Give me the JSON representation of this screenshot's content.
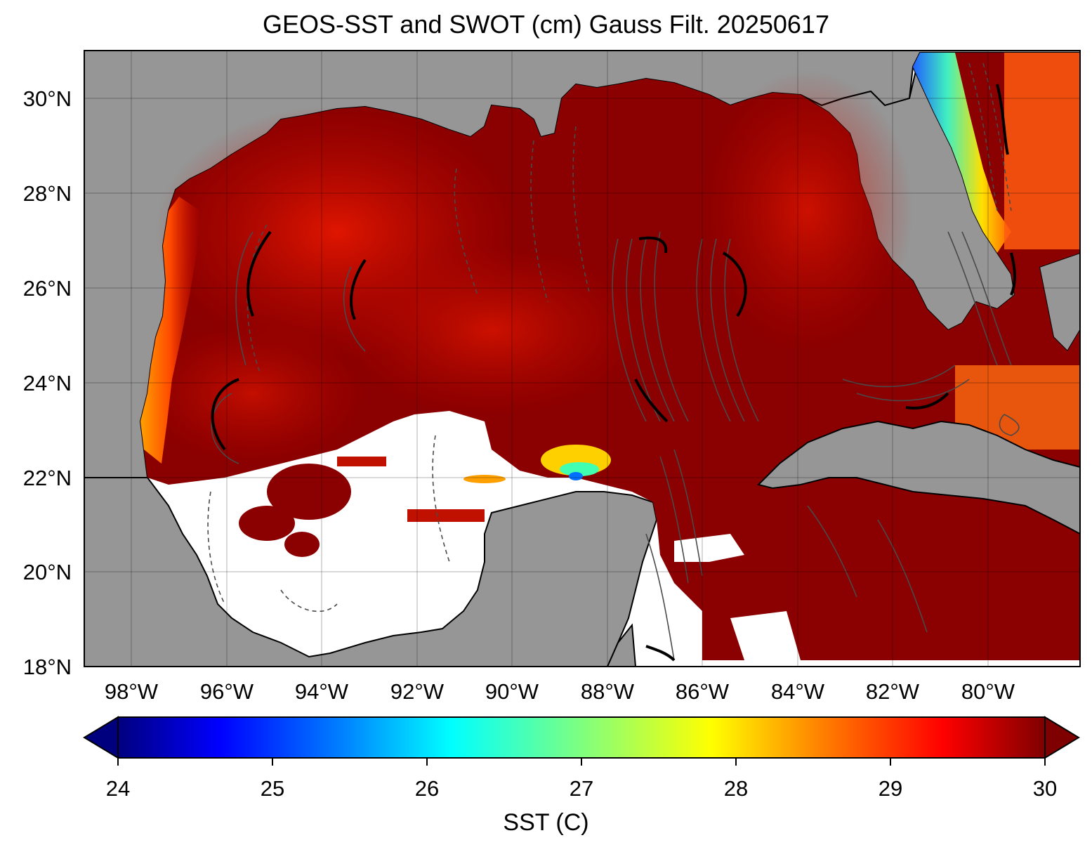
{
  "title": "GEOS-SST  and SWOT (cm) Gauss Filt. 20250617",
  "map": {
    "lat_ticks": [
      "30°N",
      "28°N",
      "26°N",
      "24°N",
      "22°N",
      "20°N",
      "18°N"
    ],
    "lon_ticks": [
      "98°W",
      "96°W",
      "94°W",
      "92°W",
      "90°W",
      "88°W",
      "86°W",
      "84°W",
      "82°W",
      "80°W"
    ],
    "extent": {
      "lon_min": -99.0,
      "lon_max": -78.1,
      "lat_min": 18.0,
      "lat_max": 31.0
    },
    "grid_lines": true,
    "land_color": "#969696",
    "sst_max_color": "#800000",
    "contour_color": "#4a4a4a",
    "missing_data_color": "#ffffff"
  },
  "colorbar": {
    "label": "SST (C)",
    "ticks": [
      "24",
      "25",
      "26",
      "27",
      "28",
      "29",
      "30"
    ],
    "min": 24,
    "max": 30,
    "extend": "both",
    "colormap": "jet",
    "colors": [
      "#00007f",
      "#0000ff",
      "#007fff",
      "#00ffff",
      "#7fff7f",
      "#ffff00",
      "#ff7f00",
      "#ff0000",
      "#7f0000"
    ]
  }
}
